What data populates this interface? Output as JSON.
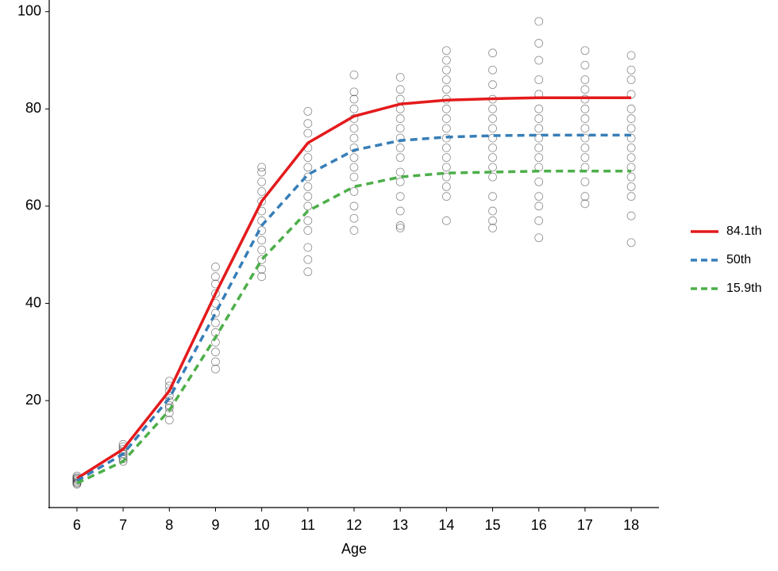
{
  "chart_data": {
    "type": "line",
    "xlabel": "Age",
    "x": [
      6,
      7,
      8,
      9,
      10,
      11,
      12,
      13,
      14,
      15,
      16,
      17,
      18
    ],
    "series": [
      {
        "name": "84.1th",
        "color": "#e41a1c",
        "linestyle": "solid",
        "values": [
          4,
          10,
          22,
          42,
          61,
          73,
          78.5,
          81,
          81.8,
          82.1,
          82.3,
          82.3,
          82.3
        ]
      },
      {
        "name": "50th",
        "color": "#377eb8",
        "linestyle": "dashed",
        "values": [
          3.5,
          9,
          20.5,
          38,
          56,
          66.5,
          71.5,
          73.5,
          74.2,
          74.5,
          74.6,
          74.6,
          74.6
        ]
      },
      {
        "name": "15.9th",
        "color": "#4daf4a",
        "linestyle": "dashed",
        "values": [
          3,
          7.5,
          18,
          33,
          49,
          59,
          64,
          66,
          66.8,
          67,
          67.2,
          67.2,
          67.2
        ]
      }
    ],
    "points": {
      "x": [
        6,
        6,
        6,
        6,
        6,
        6,
        6,
        6,
        7,
        7,
        7,
        7,
        7,
        7,
        7,
        7,
        8,
        8,
        8,
        8,
        8,
        8,
        8,
        8,
        8,
        9,
        9,
        9,
        9,
        9,
        9,
        9,
        9,
        9,
        9,
        9,
        9,
        10,
        10,
        10,
        10,
        10,
        10,
        10,
        10,
        10,
        10,
        10,
        10,
        10,
        11,
        11,
        11,
        11,
        11,
        11,
        11,
        11,
        11,
        11,
        11,
        11,
        11,
        11,
        11,
        12,
        12,
        12,
        12,
        12,
        12,
        12,
        12,
        12,
        12,
        12,
        12,
        12,
        12,
        12,
        13,
        13,
        13,
        13,
        13,
        13,
        13,
        13,
        13,
        13,
        13,
        13,
        13,
        13,
        13,
        14,
        14,
        14,
        14,
        14,
        14,
        14,
        14,
        14,
        14,
        14,
        14,
        14,
        14,
        14,
        14,
        14,
        15,
        15,
        15,
        15,
        15,
        15,
        15,
        15,
        15,
        15,
        15,
        15,
        15,
        15,
        15,
        15,
        16,
        16,
        16,
        16,
        16,
        16,
        16,
        16,
        16,
        16,
        16,
        16,
        16,
        16,
        16,
        16,
        16,
        17,
        17,
        17,
        17,
        17,
        17,
        17,
        17,
        17,
        17,
        17,
        17,
        17,
        17,
        17,
        18,
        18,
        18,
        18,
        18,
        18,
        18,
        18,
        18,
        18,
        18,
        18,
        18,
        18,
        18,
        18
      ],
      "values": [
        3,
        3.5,
        4,
        4.5,
        2.8,
        3.8,
        4.2,
        3.2,
        7.5,
        8,
        9,
        9.5,
        10,
        10.5,
        11,
        8.5,
        16,
        17.5,
        19,
        20,
        21,
        22,
        23,
        24,
        18.5,
        26.5,
        28,
        30,
        32,
        34,
        36,
        38,
        40,
        42,
        44,
        45.5,
        47.5,
        45.5,
        47,
        49,
        51,
        53,
        55,
        57,
        59,
        61,
        63,
        65,
        67,
        68,
        46.5,
        49,
        51.5,
        55,
        57,
        60,
        62,
        64,
        66,
        68,
        70,
        72,
        75,
        77,
        79.5,
        55,
        57.5,
        60,
        63,
        66,
        68,
        70,
        72,
        74,
        76,
        78,
        80,
        82,
        83.5,
        87,
        55.5,
        56,
        59,
        62,
        65,
        67,
        70,
        72,
        74,
        76,
        78,
        80,
        82,
        84,
        86.5,
        57,
        62,
        64,
        66,
        68,
        70,
        72,
        74,
        76,
        78,
        80,
        82,
        84,
        86,
        88,
        90,
        92,
        55.5,
        57,
        59,
        62,
        66,
        68,
        70,
        72,
        74,
        76,
        78,
        80,
        82,
        85,
        88,
        91.5,
        53.5,
        57,
        60,
        62,
        65,
        68,
        70,
        72,
        74,
        76,
        78,
        80,
        83,
        86,
        90,
        93.5,
        98,
        60.5,
        62,
        65,
        68,
        70,
        72,
        74,
        76,
        78,
        80,
        82,
        84,
        86,
        89,
        92,
        52.5,
        58,
        62,
        64,
        66,
        68,
        70,
        72,
        74,
        76,
        78,
        80,
        83,
        86,
        88,
        91
      ]
    },
    "xlim": [
      5.4,
      18.6
    ],
    "xticks": [
      6,
      7,
      8,
      9,
      10,
      11,
      12,
      13,
      14,
      15,
      16,
      17,
      18
    ],
    "ylim": [
      -2,
      102.4
    ],
    "yticks": [
      20,
      40,
      60,
      80,
      100
    ],
    "legend": "right"
  }
}
